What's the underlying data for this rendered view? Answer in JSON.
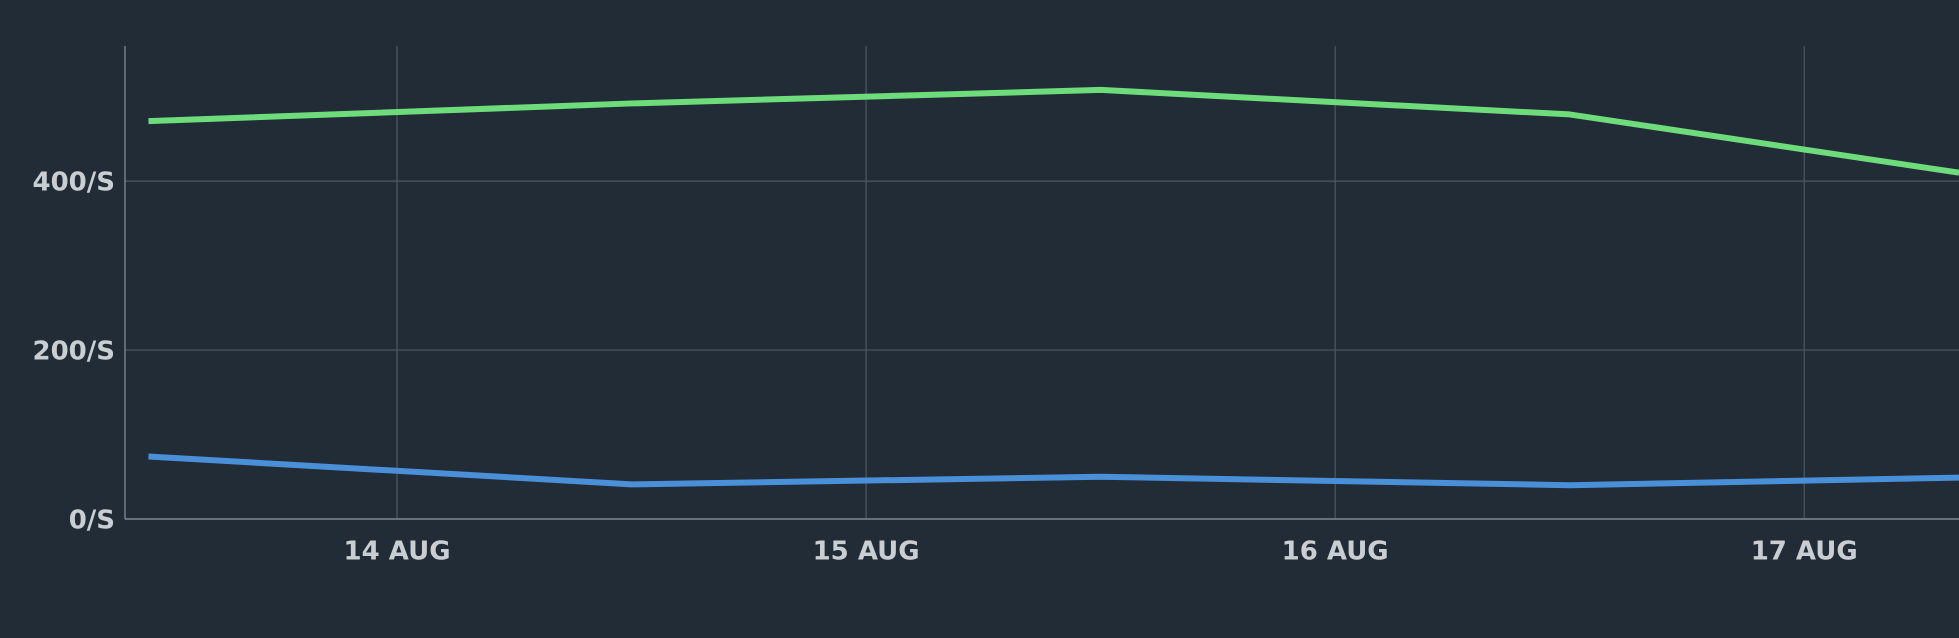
{
  "chart_data": {
    "type": "line",
    "x": [
      13.47,
      14.5,
      15.5,
      16.5,
      17.33
    ],
    "series": [
      {
        "color": "#6fdc7c",
        "values": [
          471,
          492,
          508,
          479,
          410
        ]
      },
      {
        "color": "#4a90d9",
        "values": [
          74,
          41,
          50,
          40,
          49
        ]
      }
    ],
    "xlim": [
      13.42,
      17.33
    ],
    "xticks": [
      {
        "value": 14,
        "label": "14 AUG"
      },
      {
        "value": 15,
        "label": "15 AUG"
      },
      {
        "value": 16,
        "label": "16 AUG"
      },
      {
        "value": 17,
        "label": "17 AUG"
      }
    ],
    "ylim": [
      0,
      560
    ],
    "yticks": [
      {
        "value": 0,
        "label": "0/S"
      },
      {
        "value": 200,
        "label": "200/S"
      },
      {
        "value": 400,
        "label": "400/S"
      }
    ],
    "grid": true
  }
}
